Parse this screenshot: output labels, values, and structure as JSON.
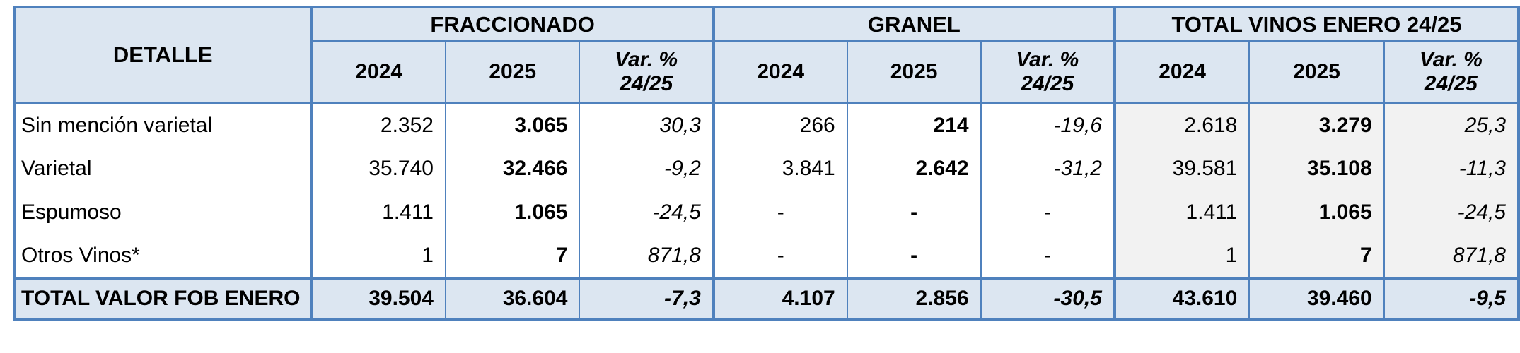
{
  "table": {
    "headers": {
      "detail": "DETALLE",
      "groups": [
        {
          "label": "FRACCIONADO"
        },
        {
          "label": "GRANEL"
        },
        {
          "label": "TOTAL VINOS ENERO 24/25"
        }
      ],
      "year_2024": "2024",
      "year_2025": "2025",
      "var_line1": "Var. %",
      "var_line2": "24/25"
    },
    "rows": [
      {
        "label": "Sin mención varietal",
        "values": [
          "2.352",
          "3.065",
          "30,3",
          "266",
          "214",
          "-19,6",
          "2.618",
          "3.279",
          "25,3"
        ]
      },
      {
        "label": "Varietal",
        "values": [
          "35.740",
          "32.466",
          "-9,2",
          "3.841",
          "2.642",
          "-31,2",
          "39.581",
          "35.108",
          "-11,3"
        ]
      },
      {
        "label": "Espumoso",
        "values": [
          "1.411",
          "1.065",
          "-24,5",
          "-",
          "-",
          "-",
          "1.411",
          "1.065",
          "-24,5"
        ]
      },
      {
        "label": "Otros Vinos*",
        "values": [
          "1",
          "7",
          "871,8",
          "-",
          "-",
          "-",
          "1",
          "7",
          "871,8"
        ]
      }
    ],
    "total_row": {
      "label": "TOTAL VALOR FOB ENERO",
      "values": [
        "39.504",
        "36.604",
        "-7,3",
        "4.107",
        "2.856",
        "-30,5",
        "43.610",
        "39.460",
        "-9,5"
      ]
    },
    "colors": {
      "border": "#4f81bd",
      "header_bg": "#dce6f1",
      "total_row_bg": "#dce6f1",
      "total_group_bg": "#f2f2f2",
      "text": "#000000"
    }
  }
}
